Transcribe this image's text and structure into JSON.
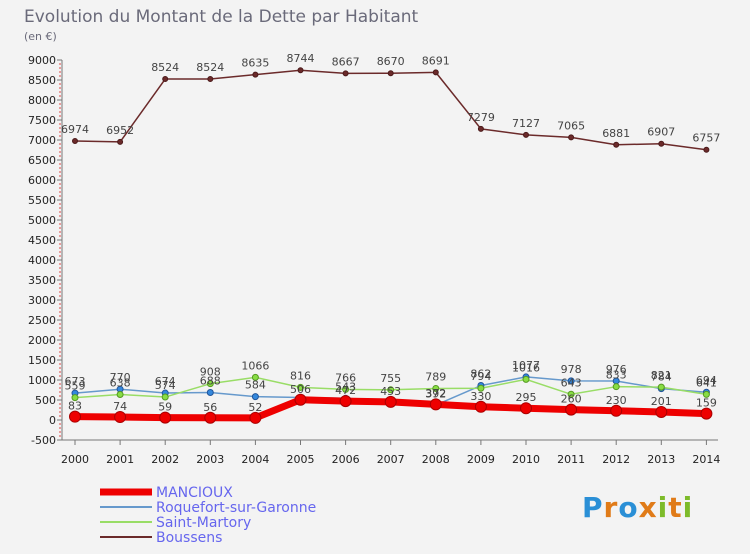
{
  "chart_data": {
    "type": "line",
    "title": "Evolution du Montant de la Dette par Habitant",
    "subtitle": "(en €)",
    "xlabel": "",
    "ylabel": "",
    "categories": [
      "2000",
      "2001",
      "2002",
      "2003",
      "2004",
      "2005",
      "2006",
      "2007",
      "2008",
      "2009",
      "2010",
      "2011",
      "2012",
      "2013",
      "2014"
    ],
    "ylim": [
      -500,
      9000
    ],
    "yticks": [
      "-500",
      "0",
      "500",
      "1000",
      "1500",
      "2000",
      "2500",
      "3000",
      "3500",
      "4000",
      "4500",
      "5000",
      "5500",
      "6000",
      "6500",
      "7000",
      "7500",
      "8000",
      "8500",
      "9000"
    ],
    "grid": false,
    "legend_position": "bottom-left",
    "series": [
      {
        "name": "MANCIOUX",
        "color": "#ee0000",
        "values": [
          83,
          74,
          59,
          56,
          52,
          506,
          472,
          453,
          392,
          330,
          295,
          260,
          230,
          201,
          159
        ],
        "labels": [
          "83",
          "74",
          "59",
          "56",
          "52",
          "506",
          "472",
          "453",
          "392",
          "330",
          "295",
          "260",
          "230",
          "201",
          "159"
        ]
      },
      {
        "name": "Roquefort-sur-Garonne",
        "color": "#6699cc",
        "values": [
          673,
          770,
          674,
          688,
          584,
          562,
          543,
          476,
          372,
          862,
          1077,
          978,
          976,
          784,
          694
        ],
        "labels": [
          "673",
          "770",
          "674",
          "688",
          "584",
          "",
          "543",
          "",
          "372",
          "862",
          "1077",
          "978",
          "976",
          "784",
          "694"
        ]
      },
      {
        "name": "Saint-Martory",
        "color": "#99dd66",
        "values": [
          559,
          638,
          574,
          908,
          1066,
          816,
          766,
          755,
          789,
          794,
          1016,
          643,
          833,
          821,
          641
        ],
        "labels": [
          "559",
          "638",
          "574",
          "908",
          "1066",
          "816",
          "766",
          "755",
          "789",
          "794",
          "1016",
          "643",
          "833",
          "821",
          "641"
        ]
      },
      {
        "name": "Boussens",
        "color": "#6b2a2a",
        "values": [
          6974,
          6952,
          8524,
          8524,
          8635,
          8744,
          8667,
          8670,
          8691,
          7279,
          7127,
          7065,
          6881,
          6907,
          6757
        ],
        "labels": [
          "6974",
          "6952",
          "8524",
          "8524",
          "8635",
          "8744",
          "8667",
          "8670",
          "8691",
          "7279",
          "7127",
          "7065",
          "6881",
          "6907",
          "6757"
        ]
      }
    ]
  },
  "branding": {
    "logo_text": "Proxiti"
  }
}
